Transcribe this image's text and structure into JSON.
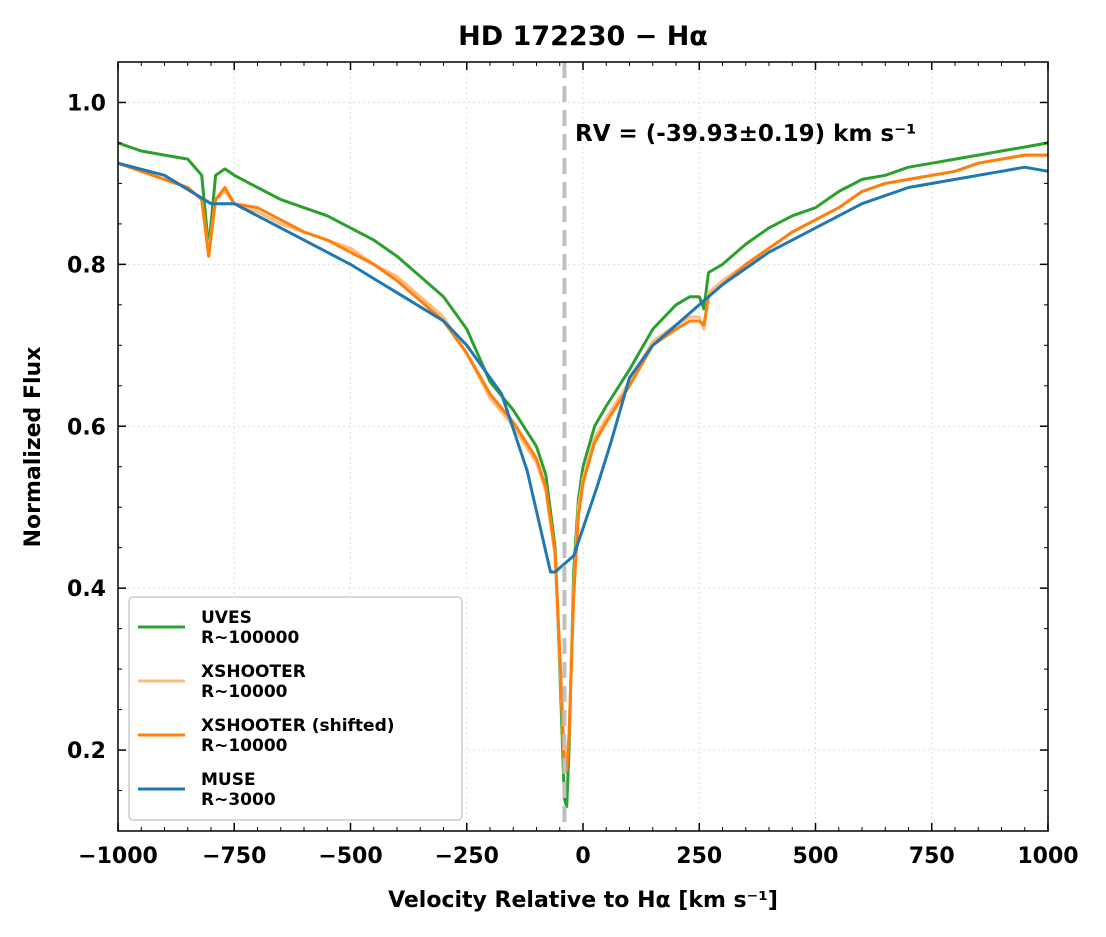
{
  "chart_data": {
    "type": "line",
    "title": "HD 172230 − Hα",
    "xlabel": "Velocity Relative to Hα [km s⁻¹]",
    "ylabel": "Normalized Flux",
    "xlim": [
      -1000,
      1000
    ],
    "ylim": [
      0.1,
      1.05
    ],
    "xticks": [
      -1000,
      -750,
      -500,
      -250,
      0,
      250,
      500,
      750,
      1000
    ],
    "xtick_labels": [
      "−1000",
      "−750",
      "−500",
      "−250",
      "0",
      "250",
      "500",
      "750",
      "1000"
    ],
    "yticks": [
      0.2,
      0.4,
      0.6,
      0.8,
      1.0
    ],
    "ytick_labels": [
      "0.2",
      "0.4",
      "0.6",
      "0.8",
      "1.0"
    ],
    "grid": true,
    "legend_position": "lower-left",
    "annotation": {
      "text": "RV = (-39.93±0.19) km s⁻¹",
      "rv": -39.93,
      "line_style": "dashed",
      "line_color": "#bfbfbf"
    },
    "series": [
      {
        "name": "UVES",
        "sublabel": "R~100000",
        "color": "#2ca02c",
        "x": [
          -1000,
          -950,
          -900,
          -850,
          -820,
          -805,
          -790,
          -770,
          -750,
          -700,
          -650,
          -600,
          -550,
          -500,
          -450,
          -400,
          -350,
          -300,
          -250,
          -200,
          -150,
          -100,
          -80,
          -60,
          -50,
          -40,
          -35,
          -30,
          -20,
          -10,
          0,
          25,
          50,
          100,
          150,
          200,
          230,
          250,
          260,
          270,
          300,
          350,
          400,
          450,
          500,
          550,
          600,
          650,
          700,
          750,
          800,
          850,
          900,
          950,
          1000
        ],
        "y": [
          0.95,
          0.94,
          0.935,
          0.93,
          0.91,
          0.82,
          0.91,
          0.918,
          0.91,
          0.895,
          0.88,
          0.87,
          0.86,
          0.845,
          0.83,
          0.81,
          0.785,
          0.76,
          0.72,
          0.655,
          0.62,
          0.575,
          0.54,
          0.45,
          0.3,
          0.14,
          0.13,
          0.2,
          0.42,
          0.51,
          0.55,
          0.6,
          0.625,
          0.67,
          0.72,
          0.75,
          0.76,
          0.76,
          0.745,
          0.79,
          0.8,
          0.825,
          0.845,
          0.86,
          0.87,
          0.89,
          0.905,
          0.91,
          0.92,
          0.925,
          0.93,
          0.935,
          0.94,
          0.945,
          0.95
        ]
      },
      {
        "name": "XSHOOTER",
        "sublabel": "R~10000",
        "color": "#ffbb78",
        "x": [
          -1000,
          -950,
          -900,
          -850,
          -820,
          -805,
          -790,
          -770,
          -750,
          -700,
          -650,
          -600,
          -550,
          -500,
          -450,
          -400,
          -350,
          -300,
          -250,
          -200,
          -150,
          -100,
          -80,
          -60,
          -50,
          -40,
          -35,
          -30,
          -20,
          -10,
          0,
          25,
          50,
          100,
          150,
          200,
          230,
          250,
          260,
          270,
          300,
          350,
          400,
          450,
          500,
          550,
          600,
          650,
          700,
          750,
          800,
          850,
          900,
          950,
          1000
        ],
        "y": [
          0.925,
          0.915,
          0.905,
          0.895,
          0.88,
          0.815,
          0.88,
          0.89,
          0.875,
          0.865,
          0.85,
          0.84,
          0.83,
          0.82,
          0.8,
          0.785,
          0.76,
          0.735,
          0.69,
          0.635,
          0.6,
          0.555,
          0.52,
          0.44,
          0.31,
          0.18,
          0.175,
          0.22,
          0.4,
          0.5,
          0.535,
          0.585,
          0.61,
          0.655,
          0.705,
          0.725,
          0.735,
          0.735,
          0.72,
          0.765,
          0.78,
          0.8,
          0.82,
          0.84,
          0.855,
          0.87,
          0.89,
          0.9,
          0.905,
          0.91,
          0.915,
          0.925,
          0.93,
          0.935,
          0.935
        ]
      },
      {
        "name": "XSHOOTER (shifted)",
        "sublabel": "R~10000",
        "color": "#ff7f0e",
        "x": [
          -1000,
          -950,
          -900,
          -850,
          -820,
          -805,
          -790,
          -770,
          -750,
          -700,
          -650,
          -600,
          -550,
          -500,
          -450,
          -400,
          -350,
          -300,
          -250,
          -200,
          -150,
          -100,
          -80,
          -60,
          -50,
          -40,
          -35,
          -30,
          -20,
          -10,
          0,
          25,
          50,
          100,
          150,
          200,
          230,
          250,
          260,
          270,
          300,
          350,
          400,
          450,
          500,
          550,
          600,
          650,
          700,
          750,
          800,
          850,
          900,
          950,
          1000
        ],
        "y": [
          0.925,
          0.915,
          0.905,
          0.895,
          0.88,
          0.81,
          0.88,
          0.895,
          0.875,
          0.87,
          0.855,
          0.84,
          0.83,
          0.815,
          0.8,
          0.78,
          0.755,
          0.73,
          0.69,
          0.64,
          0.605,
          0.56,
          0.525,
          0.445,
          0.32,
          0.185,
          0.175,
          0.215,
          0.39,
          0.49,
          0.53,
          0.58,
          0.605,
          0.65,
          0.7,
          0.72,
          0.73,
          0.73,
          0.725,
          0.76,
          0.775,
          0.8,
          0.82,
          0.84,
          0.855,
          0.87,
          0.89,
          0.9,
          0.905,
          0.91,
          0.915,
          0.925,
          0.93,
          0.935,
          0.935
        ]
      },
      {
        "name": "MUSE",
        "sublabel": "R~3000",
        "color": "#1f77b4",
        "x": [
          -1000,
          -900,
          -800,
          -750,
          -700,
          -600,
          -500,
          -400,
          -300,
          -250,
          -175,
          -120,
          -70,
          -60,
          -20,
          30,
          60,
          100,
          150,
          200,
          250,
          300,
          400,
          500,
          600,
          700,
          800,
          900,
          950,
          1000
        ],
        "y": [
          0.925,
          0.91,
          0.875,
          0.875,
          0.86,
          0.83,
          0.8,
          0.765,
          0.73,
          0.7,
          0.64,
          0.545,
          0.42,
          0.42,
          0.44,
          0.525,
          0.58,
          0.66,
          0.7,
          0.725,
          0.75,
          0.775,
          0.815,
          0.845,
          0.875,
          0.895,
          0.905,
          0.915,
          0.92,
          0.915
        ]
      }
    ]
  }
}
